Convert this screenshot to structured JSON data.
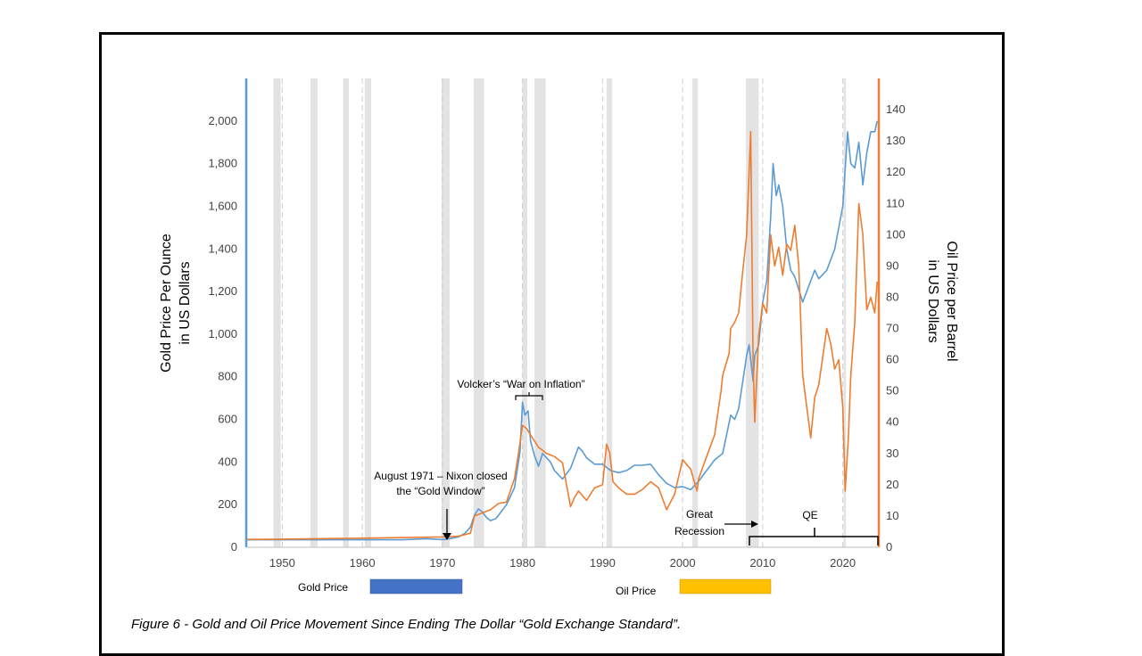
{
  "caption": "Figure 6 -  Gold and Oil Price Movement Since Ending The Dollar “Gold Exchange Standard”.",
  "colors": {
    "gold": "#5b9bd5",
    "oil": "#ed7d31",
    "gold_legend": "#4472c4",
    "oil_legend": "#ffc000",
    "recession": "#e3e3e3"
  },
  "chart_data": {
    "type": "line",
    "xlim": [
      1945.5,
      2024.5
    ],
    "x_ticks": [
      1950,
      1960,
      1970,
      1980,
      1990,
      2000,
      2010,
      2020
    ],
    "x_tick_labels": [
      "1950",
      "1960",
      "1970",
      "1980",
      "1990",
      "2000",
      "2010",
      "2020"
    ],
    "y_left": {
      "label_line1": "Gold Price Per Ounce",
      "label_line2": "in US Dollars",
      "lim": [
        0,
        2200
      ],
      "ticks": [
        0,
        200,
        400,
        600,
        800,
        1000,
        1200,
        1400,
        1600,
        1800,
        2000
      ],
      "tick_labels": [
        "0",
        "200",
        "400",
        "600",
        "800",
        "1,000",
        "1,200",
        "1,400",
        "1,600",
        "1,800",
        "2,000"
      ]
    },
    "y_right": {
      "label_line1": "Oil Price per Barrel",
      "label_line2": "in US Dollars",
      "lim": [
        0,
        150
      ],
      "ticks": [
        0,
        10,
        20,
        30,
        40,
        50,
        60,
        70,
        80,
        90,
        100,
        110,
        120,
        130,
        140
      ],
      "tick_labels": [
        "0",
        "10",
        "20",
        "30",
        "40",
        "50",
        "60",
        "70",
        "80",
        "90",
        "100",
        "110",
        "120",
        "130",
        "140"
      ]
    },
    "recessions": [
      [
        1948.9,
        1949.8
      ],
      [
        1953.5,
        1954.4
      ],
      [
        1957.6,
        1958.3
      ],
      [
        1960.3,
        1961.1
      ],
      [
        1969.9,
        1970.9
      ],
      [
        1973.9,
        1975.2
      ],
      [
        1980.0,
        1980.6
      ],
      [
        1981.5,
        1982.9
      ],
      [
        1990.5,
        1991.2
      ],
      [
        2001.2,
        2001.9
      ],
      [
        2007.9,
        2009.5
      ],
      [
        2020.1,
        2020.4
      ]
    ],
    "series": [
      {
        "name": "Gold Price",
        "axis": "left",
        "x": [
          1945.5,
          1948,
          1955,
          1965,
          1968,
          1970,
          1971,
          1972,
          1972.8,
          1973.5,
          1974,
          1974.5,
          1975,
          1975.5,
          1976,
          1976.7,
          1977,
          1978,
          1979,
          1979.7,
          1980,
          1980.3,
          1980.7,
          1981,
          1981.5,
          1982,
          1982.5,
          1983,
          1983.5,
          1984,
          1984.5,
          1985,
          1986,
          1987,
          1987.5,
          1988,
          1989,
          1990,
          1991,
          1992,
          1993,
          1994,
          1995,
          1996,
          1997,
          1998,
          1999,
          2000,
          2001,
          2002,
          2003,
          2004,
          2005,
          2006,
          2006.5,
          2007,
          2008,
          2008.3,
          2008.8,
          2009,
          2009.5,
          2010,
          2010.5,
          2011,
          2011.3,
          2011.7,
          2012,
          2012.5,
          2013,
          2013.5,
          2014,
          2015,
          2016,
          2016.5,
          2017,
          2018,
          2019,
          2019.5,
          2020,
          2020.6,
          2021,
          2021.5,
          2022,
          2022.5,
          2023,
          2023.5,
          2024,
          2024.3
        ],
        "y": [
          35,
          35,
          35,
          35,
          40,
          36,
          41,
          48,
          65,
          95,
          150,
          180,
          165,
          140,
          125,
          135,
          150,
          200,
          280,
          450,
          680,
          620,
          640,
          500,
          430,
          380,
          440,
          420,
          400,
          360,
          340,
          320,
          370,
          470,
          450,
          420,
          390,
          390,
          360,
          350,
          360,
          385,
          385,
          390,
          340,
          300,
          280,
          285,
          270,
          310,
          360,
          410,
          440,
          620,
          600,
          650,
          900,
          950,
          780,
          900,
          950,
          1150,
          1250,
          1550,
          1800,
          1650,
          1700,
          1600,
          1400,
          1300,
          1270,
          1150,
          1250,
          1300,
          1260,
          1300,
          1400,
          1500,
          1600,
          1950,
          1800,
          1780,
          1900,
          1700,
          1850,
          1950,
          1950,
          2000
        ]
      },
      {
        "name": "Oil Price",
        "axis": "right",
        "x": [
          1945.5,
          1950,
          1960,
          1970,
          1972,
          1973.5,
          1974,
          1975,
          1976,
          1977,
          1978,
          1979,
          1979.5,
          1980,
          1980.5,
          1981,
          1981.5,
          1982,
          1983,
          1984,
          1985,
          1985.5,
          1986,
          1986.5,
          1987,
          1988,
          1989,
          1990,
          1990.5,
          1990.9,
          1991.3,
          1992,
          1993,
          1994,
          1995,
          1996,
          1997,
          1998,
          1999,
          2000,
          2001,
          2001.8,
          2002,
          2003,
          2004,
          2004.8,
          2005,
          2005.8,
          2006,
          2006.5,
          2007,
          2007.5,
          2008,
          2008.5,
          2008.8,
          2009,
          2009.5,
          2010,
          2010.5,
          2011,
          2011.5,
          2012,
          2012.5,
          2013,
          2013.5,
          2014,
          2014.5,
          2015,
          2016,
          2016.5,
          2017,
          2018,
          2018.5,
          2019,
          2019.5,
          2020,
          2020.3,
          2020.7,
          2021,
          2021.5,
          2022,
          2022.5,
          2023,
          2023.5,
          2024,
          2024.3
        ],
        "y": [
          2.5,
          2.6,
          2.9,
          3.3,
          3.5,
          4.5,
          10,
          11,
          12,
          14,
          14.5,
          22,
          30,
          39,
          38,
          36,
          34,
          32,
          30,
          29,
          27,
          20,
          13,
          16,
          18,
          15,
          19,
          20,
          33,
          30,
          21,
          19,
          17,
          17,
          18.5,
          21,
          19,
          12,
          17,
          28,
          25,
          18,
          22,
          29,
          36,
          50,
          55,
          62,
          70,
          72,
          75,
          88,
          100,
          133,
          60,
          40,
          68,
          78,
          75,
          100,
          90,
          96,
          87,
          97,
          95,
          103,
          90,
          55,
          35,
          48,
          52,
          70,
          65,
          57,
          60,
          45,
          18,
          35,
          55,
          72,
          110,
          100,
          76,
          80,
          75,
          85
        ]
      }
    ]
  },
  "annotations": {
    "volcker": "Volcker’s “War on Inflation”",
    "nixon_line1": "August 1971 – Nixon closed",
    "nixon_line2": "the “Gold Window”",
    "recession_line1": "Great",
    "recession_line2": "Recession",
    "qe": "QE"
  },
  "legend": {
    "gold": "Gold Price",
    "oil": "Oil Price"
  }
}
